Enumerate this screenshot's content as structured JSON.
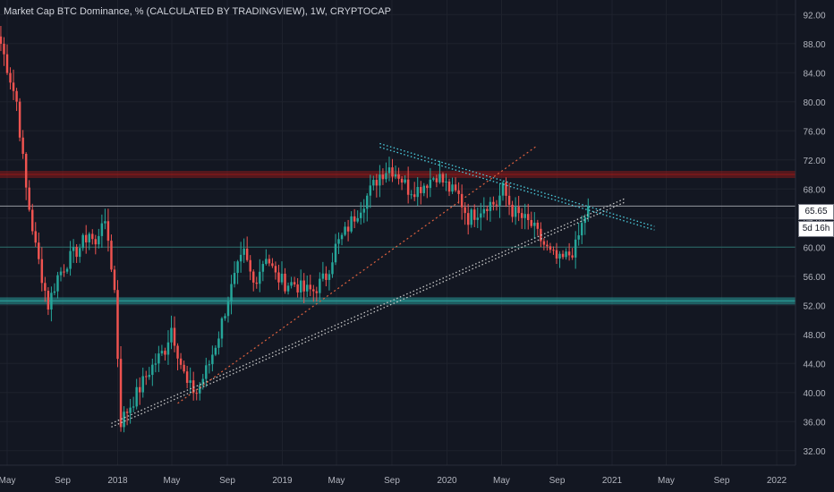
{
  "header": {
    "title": "Market Cap BTC Dominance, % (CALCULATED BY TRADINGVIEW), 1W, CRYPTOCAP"
  },
  "price_tags": {
    "last_price": "65.65",
    "countdown": "5d 16h"
  },
  "colors": {
    "background": "#131722",
    "up": "#26a69a",
    "down": "#ef5350",
    "axis_text": "#b2b5be",
    "resistance_band": "#8b1a1a",
    "support_band": "#2a9d9a",
    "trendline_cyan": "#4dd0e1",
    "trendline_white": "#c8c8c8",
    "trendline_red": "#e0623f"
  },
  "chart_data": {
    "type": "candlestick",
    "title": "Market Cap BTC Dominance, % (CALCULATED BY TRADINGVIEW), 1W, CRYPTOCAP",
    "ylim": [
      30,
      94
    ],
    "y_ticks": [
      "32.00",
      "36.00",
      "40.00",
      "44.00",
      "48.00",
      "52.00",
      "56.00",
      "60.00",
      "64.00",
      "68.00",
      "72.00",
      "76.00",
      "80.00",
      "84.00",
      "88.00",
      "92.00"
    ],
    "x_ticks": [
      {
        "label": "May",
        "date": "2017-05"
      },
      {
        "label": "Sep",
        "date": "2017-09"
      },
      {
        "label": "2018",
        "date": "2018-01"
      },
      {
        "label": "May",
        "date": "2018-05"
      },
      {
        "label": "Sep",
        "date": "2018-09"
      },
      {
        "label": "2019",
        "date": "2019-01"
      },
      {
        "label": "May",
        "date": "2019-05"
      },
      {
        "label": "Sep",
        "date": "2019-09"
      },
      {
        "label": "2020",
        "date": "2020-01"
      },
      {
        "label": "May",
        "date": "2020-05"
      },
      {
        "label": "Sep",
        "date": "2020-09"
      },
      {
        "label": "2021",
        "date": "2021-01"
      },
      {
        "label": "May",
        "date": "2021-05"
      },
      {
        "label": "Sep",
        "date": "2021-09"
      },
      {
        "label": "2022",
        "date": "2022-01"
      }
    ],
    "last_price": 65.65,
    "horizontal_levels": [
      {
        "value": 70,
        "kind": "band",
        "color": "#8b1a1a"
      },
      {
        "value": 65.65,
        "kind": "line",
        "color": "#9598a1"
      },
      {
        "value": 60,
        "kind": "line",
        "color": "#2a6f6c"
      },
      {
        "value": 52.6,
        "kind": "band",
        "color": "#2a9d9a"
      }
    ],
    "trendlines": [
      {
        "from": [
          "2017-12-18",
          35.5
        ],
        "to": [
          "2021-02-01",
          66.5
        ],
        "style": "double-dotted",
        "color": "#c8c8c8"
      },
      {
        "from": [
          "2018-05-14",
          38.5
        ],
        "to": [
          "2020-07-20",
          74
        ],
        "style": "dotted",
        "color": "#e0623f"
      },
      {
        "from": [
          "2019-08-05",
          74
        ],
        "to": [
          "2021-04-05",
          62.6
        ],
        "style": "double-dotted",
        "color": "#4dd0e1"
      }
    ],
    "anchors": [
      [
        "2017-04-17",
        88
      ],
      [
        "2017-05-22",
        80
      ],
      [
        "2017-06-12",
        68
      ],
      [
        "2017-07-03",
        60
      ],
      [
        "2017-07-31",
        52
      ],
      [
        "2017-08-21",
        56
      ],
      [
        "2017-09-11",
        58
      ],
      [
        "2017-10-09",
        60
      ],
      [
        "2017-10-30",
        62
      ],
      [
        "2017-11-13",
        60
      ],
      [
        "2017-11-27",
        64
      ],
      [
        "2017-12-11",
        61
      ],
      [
        "2017-12-25",
        54
      ],
      [
        "2018-01-08",
        36
      ],
      [
        "2018-02-05",
        39
      ],
      [
        "2018-03-12",
        43
      ],
      [
        "2018-04-16",
        46
      ],
      [
        "2018-04-30",
        49
      ],
      [
        "2018-05-21",
        44
      ],
      [
        "2018-06-04",
        41
      ],
      [
        "2018-06-25",
        40
      ],
      [
        "2018-07-23",
        44
      ],
      [
        "2018-08-13",
        48
      ],
      [
        "2018-09-03",
        53
      ],
      [
        "2018-09-24",
        57
      ],
      [
        "2018-10-08",
        59
      ],
      [
        "2018-10-29",
        55
      ],
      [
        "2018-11-26",
        59
      ],
      [
        "2018-12-17",
        56
      ],
      [
        "2019-01-07",
        55
      ],
      [
        "2019-01-28",
        55
      ],
      [
        "2019-02-18",
        54
      ],
      [
        "2019-03-11",
        54
      ],
      [
        "2019-04-08",
        56
      ],
      [
        "2019-04-29",
        60
      ],
      [
        "2019-05-20",
        62
      ],
      [
        "2019-06-17",
        65
      ],
      [
        "2019-07-08",
        67
      ],
      [
        "2019-08-05",
        70
      ],
      [
        "2019-08-26",
        71
      ],
      [
        "2019-09-16",
        70
      ],
      [
        "2019-10-07",
        68
      ],
      [
        "2019-10-28",
        68
      ],
      [
        "2019-11-18",
        69
      ],
      [
        "2019-12-09",
        70
      ],
      [
        "2020-01-06",
        68
      ],
      [
        "2020-01-27",
        67
      ],
      [
        "2020-02-17",
        64
      ],
      [
        "2020-03-09",
        65
      ],
      [
        "2020-03-30",
        66
      ],
      [
        "2020-04-20",
        66
      ],
      [
        "2020-05-04",
        68
      ],
      [
        "2020-05-25",
        65
      ],
      [
        "2020-06-15",
        64
      ],
      [
        "2020-07-06",
        63
      ],
      [
        "2020-07-27",
        61
      ],
      [
        "2020-08-17",
        59
      ],
      [
        "2020-09-07",
        58
      ],
      [
        "2020-09-28",
        59
      ],
      [
        "2020-10-12",
        60
      ],
      [
        "2020-10-26",
        63
      ],
      [
        "2020-11-09",
        65.65
      ]
    ]
  }
}
